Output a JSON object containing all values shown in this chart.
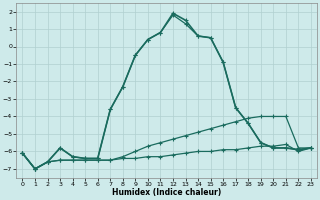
{
  "xlabel": "Humidex (Indice chaleur)",
  "bg_color": "#ceeaea",
  "grid_color": "#b0d0d0",
  "line_color": "#1a6b5e",
  "xlim": [
    -0.5,
    23.5
  ],
  "ylim": [
    -7.5,
    2.5
  ],
  "yticks": [
    2,
    1,
    0,
    -1,
    -2,
    -3,
    -4,
    -5,
    -6,
    -7
  ],
  "xticks": [
    0,
    1,
    2,
    3,
    4,
    5,
    6,
    7,
    8,
    9,
    10,
    11,
    12,
    13,
    14,
    15,
    16,
    17,
    18,
    19,
    20,
    21,
    22,
    23
  ],
  "series": [
    {
      "x": [
        0,
        1,
        2,
        3,
        4,
        5,
        6,
        7,
        8,
        9,
        10,
        11,
        12,
        13,
        14,
        15,
        16,
        17,
        18,
        19,
        20,
        21,
        22,
        23
      ],
      "y": [
        -6.1,
        -7.0,
        -6.6,
        -6.5,
        -6.5,
        -6.5,
        -6.5,
        -6.5,
        -6.4,
        -6.4,
        -6.3,
        -6.3,
        -6.2,
        -6.1,
        -6.0,
        -6.0,
        -5.9,
        -5.9,
        -5.8,
        -5.7,
        -5.7,
        -5.6,
        -6.0,
        -5.8
      ],
      "marker": "+",
      "ms": 3.0,
      "lw": 0.9
    },
    {
      "x": [
        0,
        1,
        2,
        3,
        4,
        5,
        6,
        7,
        8,
        9,
        10,
        11,
        12,
        13,
        14,
        15,
        16,
        17,
        18,
        19,
        20,
        21,
        22,
        23
      ],
      "y": [
        -6.1,
        -7.0,
        -6.6,
        -6.5,
        -6.5,
        -6.5,
        -6.5,
        -6.5,
        -6.3,
        -6.0,
        -5.7,
        -5.5,
        -5.3,
        -5.1,
        -4.9,
        -4.7,
        -4.5,
        -4.3,
        -4.1,
        -4.0,
        -4.0,
        -4.0,
        -5.8,
        -5.8
      ],
      "marker": "+",
      "ms": 3.0,
      "lw": 0.9
    },
    {
      "x": [
        0,
        1,
        2,
        3,
        4,
        5,
        6,
        7,
        8,
        9,
        10,
        11,
        12,
        13,
        14,
        15,
        16,
        17,
        18,
        19,
        20,
        21,
        22,
        23
      ],
      "y": [
        -6.1,
        -7.0,
        -6.6,
        -5.8,
        -6.3,
        -6.4,
        -6.4,
        -3.6,
        -2.3,
        -0.5,
        0.4,
        0.8,
        1.8,
        1.3,
        0.6,
        0.5,
        -0.9,
        -3.5,
        -4.4,
        -5.5,
        -5.8,
        -5.8,
        -5.9,
        -5.8
      ],
      "marker": "+",
      "ms": 3.0,
      "lw": 0.9
    },
    {
      "x": [
        0,
        1,
        2,
        3,
        4,
        5,
        6,
        7,
        8,
        9,
        10,
        11,
        12,
        13,
        14,
        15,
        16,
        17,
        18,
        19,
        20,
        21,
        22,
        23
      ],
      "y": [
        -6.1,
        -7.0,
        -6.6,
        -5.8,
        -6.3,
        -6.4,
        -6.4,
        -3.6,
        -2.3,
        -0.5,
        0.4,
        0.8,
        1.9,
        1.5,
        0.6,
        0.5,
        -0.9,
        -3.5,
        -4.4,
        -5.5,
        -5.8,
        -5.8,
        -5.9,
        -5.8
      ],
      "marker": "+",
      "ms": 3.5,
      "lw": 1.2
    }
  ]
}
